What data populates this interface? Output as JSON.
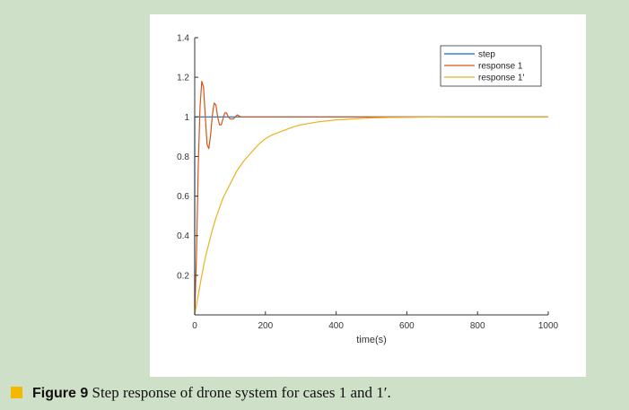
{
  "chart_data": {
    "type": "line",
    "title": "",
    "xlabel": "time(s)",
    "ylabel": "",
    "xlim": [
      0,
      1000
    ],
    "ylim": [
      0,
      1.4
    ],
    "xticks": [
      0,
      200,
      400,
      600,
      800,
      1000
    ],
    "yticks": [
      0.2,
      0.4,
      0.6,
      0.8,
      1,
      1.2,
      1.4
    ],
    "ytick_labels": [
      "0.2",
      "0.4",
      "0.6",
      "0.8",
      "1",
      "1.2",
      "1.4"
    ],
    "legend_position": "top-right",
    "grid": false,
    "series": [
      {
        "name": "step",
        "color": "#0072bd",
        "x": [
          0,
          0,
          1000
        ],
        "y": [
          0,
          1,
          1
        ]
      },
      {
        "name": "response 1",
        "color": "#d95319",
        "x": [
          0,
          5,
          10,
          15,
          20,
          25,
          30,
          35,
          40,
          45,
          50,
          55,
          60,
          65,
          70,
          75,
          80,
          85,
          90,
          95,
          100,
          110,
          120,
          130,
          140,
          150,
          160,
          170,
          180,
          200,
          250,
          300,
          400,
          500,
          600,
          700,
          800,
          900,
          1000
        ],
        "y": [
          0,
          0.3,
          0.75,
          1.05,
          1.18,
          1.15,
          1.0,
          0.86,
          0.84,
          0.91,
          1.01,
          1.07,
          1.06,
          1.0,
          0.96,
          0.96,
          0.99,
          1.02,
          1.02,
          1.0,
          0.99,
          0.99,
          1.01,
          1.0,
          1.0,
          1.0,
          1.0,
          1.0,
          1.0,
          1.0,
          1.0,
          1.0,
          1.0,
          1.0,
          1.0,
          1.0,
          1.0,
          1.0,
          1.0
        ]
      },
      {
        "name": "response 1'",
        "color": "#edb120",
        "x": [
          0,
          10,
          20,
          30,
          40,
          50,
          60,
          80,
          100,
          120,
          140,
          160,
          180,
          200,
          220,
          250,
          280,
          300,
          350,
          400,
          450,
          500,
          550,
          600,
          700,
          800,
          900,
          1000
        ],
        "y": [
          0,
          0.1,
          0.2,
          0.29,
          0.36,
          0.43,
          0.49,
          0.59,
          0.66,
          0.73,
          0.78,
          0.82,
          0.86,
          0.89,
          0.91,
          0.93,
          0.95,
          0.96,
          0.975,
          0.985,
          0.99,
          0.995,
          0.997,
          0.998,
          1.0,
          1.0,
          1.0,
          1.0
        ]
      }
    ]
  },
  "caption": {
    "label": "Figure 9",
    "text": " Step response of drone system for cases 1 and 1′."
  }
}
